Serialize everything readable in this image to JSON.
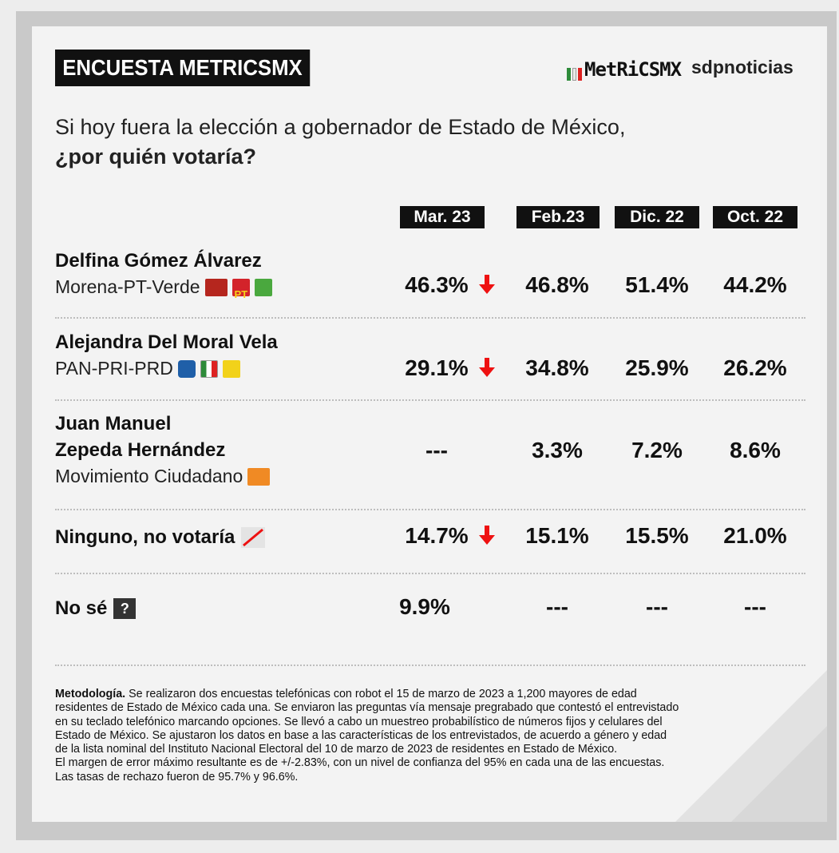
{
  "header": {
    "badge": "ENCUESTA METRICSMX",
    "logo_text": "MetRiCSMX",
    "partner": "sdpnoticias"
  },
  "question": {
    "line1": "Si hoy fuera la elección a gobernador de Estado de México,",
    "line2": "¿por quién votaría?"
  },
  "icons": {
    "morena": "morena-logo-icon",
    "pt": "pt-logo-icon",
    "verde": "verde-logo-icon",
    "pan": "pan-logo-icon",
    "pri": "pri-logo-icon",
    "prd": "prd-logo-icon",
    "mc": "movimiento-ciudadano-logo-icon",
    "none": "slash-icon",
    "unknown": "question-icon"
  },
  "colors": {
    "down_arrow": "#e11111",
    "header_bg": "#111111",
    "morena": "#b5261e",
    "pt": "#d3232a",
    "verde": "#4aa83e",
    "pan": "#1f5fa8",
    "prd": "#f2d21a",
    "mc": "#f08a24"
  },
  "chart_data": {
    "type": "table",
    "title": "Si hoy fuera la elección a gobernador de Estado de México, ¿por quién votaría?",
    "columns": [
      "Mar. 23",
      "Feb.23",
      "Dic. 22",
      "Oct. 22"
    ],
    "rows": [
      {
        "name": "Delfina Gómez Álvarez",
        "party": "Morena-PT-Verde",
        "values": [
          "46.3%",
          "46.8%",
          "51.4%",
          "44.2%"
        ],
        "trend_first": "down"
      },
      {
        "name": "Alejandra Del Moral Vela",
        "party": "PAN-PRI-PRD",
        "values": [
          "29.1%",
          "34.8%",
          "25.9%",
          "26.2%"
        ],
        "trend_first": "down"
      },
      {
        "name_line1": "Juan Manuel",
        "name_line2": "Zepeda Hernández",
        "party": "Movimiento Ciudadano",
        "values": [
          "---",
          "3.3%",
          "7.2%",
          "8.6%"
        ]
      },
      {
        "name": "Ninguno, no votaría",
        "values": [
          "14.7%",
          "15.1%",
          "15.5%",
          "21.0%"
        ],
        "trend_first": "down"
      },
      {
        "name": "No sé",
        "values": [
          "9.9%",
          "---",
          "---",
          "---"
        ]
      }
    ]
  },
  "methodology": {
    "label": "Metodología.",
    "lines": [
      " Se realizaron dos encuestas telefónicas con robot el 15 de marzo de 2023 a 1,200 mayores de edad",
      "residentes de Estado de México cada una. Se enviaron las preguntas vía mensaje pregrabado que contestó el entrevistado",
      "en su teclado telefónico marcando opciones. Se llevó a cabo un muestreo probabilístico de números fijos y celulares del",
      "Estado de México. Se ajustaron los datos en base a las características de los entrevistados, de acuerdo a género y edad",
      "de la lista nominal del Instituto Nacional Electoral del 10 de marzo de 2023 de residentes en Estado de México.",
      "El margen de error máximo resultante es de +/-2.83%, con un nivel de confianza del 95% en cada una de las encuestas.",
      "Las tasas de rechazo fueron de 95.7% y 96.6%."
    ]
  }
}
